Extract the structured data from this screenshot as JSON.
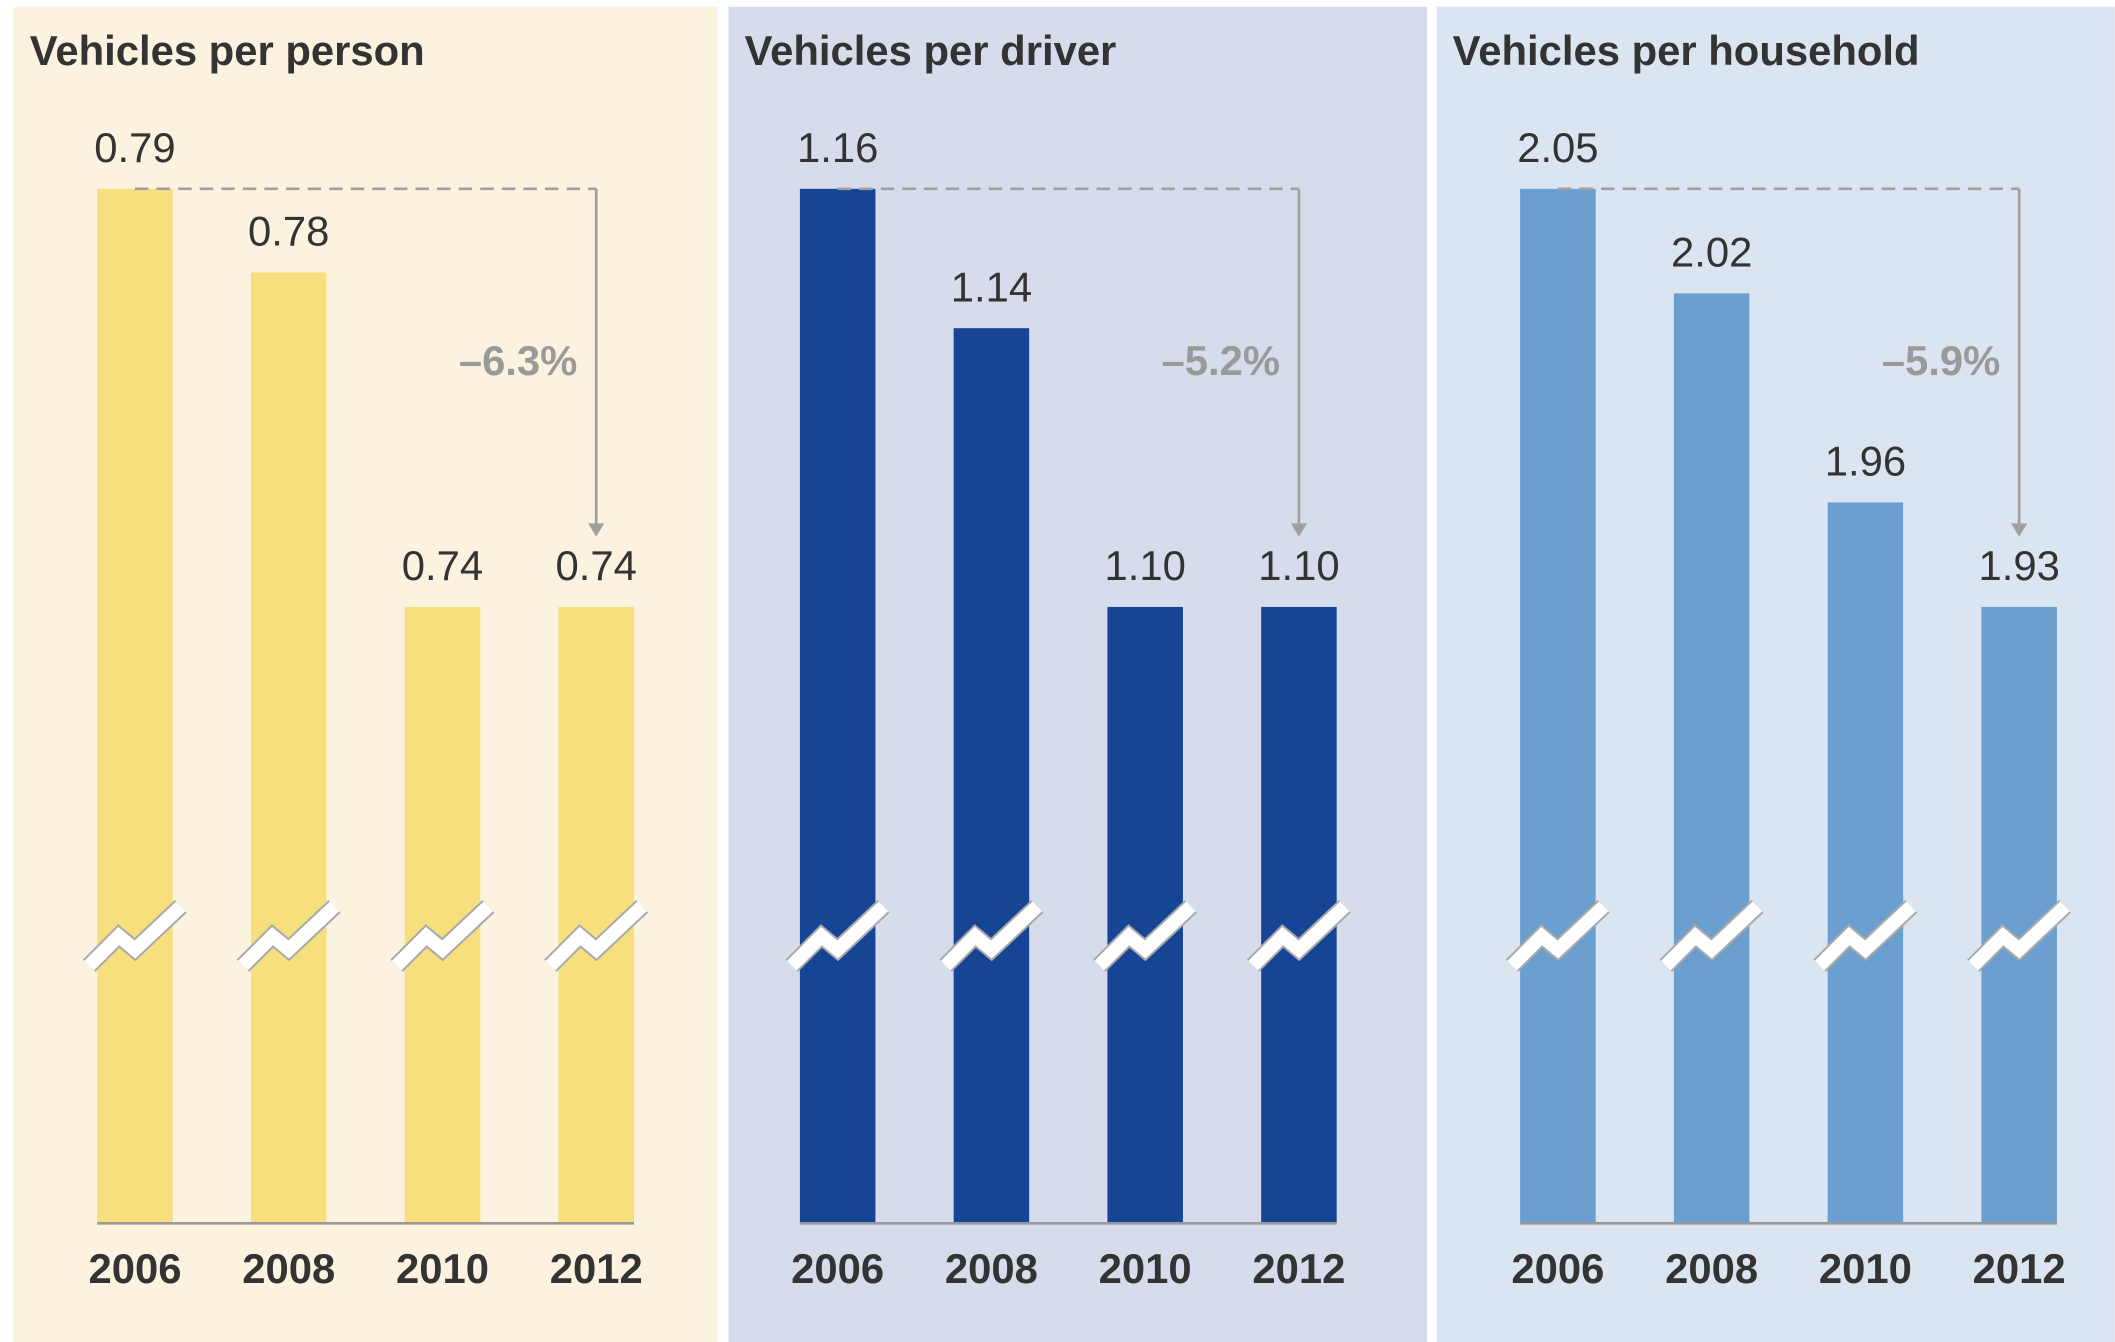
{
  "chart_data": [
    {
      "type": "bar",
      "title": "Vehicles per person",
      "categories": [
        "2006",
        "2008",
        "2010",
        "2012"
      ],
      "values": [
        0.79,
        0.78,
        0.74,
        0.74
      ],
      "value_labels": [
        "0.79",
        "0.78",
        "0.74",
        "0.74"
      ],
      "color": "#f7df7e",
      "background": "#fbf3df",
      "annotation": "–6.3%"
    },
    {
      "type": "bar",
      "title": "Vehicles per driver",
      "categories": [
        "2006",
        "2008",
        "2010",
        "2012"
      ],
      "values": [
        1.16,
        1.14,
        1.1,
        1.1
      ],
      "value_labels": [
        "1.16",
        "1.14",
        "1.10",
        "1.10"
      ],
      "color": "#164595",
      "background": "#d7dcec",
      "annotation": "–5.2%"
    },
    {
      "type": "bar",
      "title": "Vehicles per household",
      "categories": [
        "2006",
        "2008",
        "2010",
        "2012"
      ],
      "values": [
        2.05,
        2.02,
        1.96,
        1.93
      ],
      "value_labels": [
        "2.05",
        "2.02",
        "1.96",
        "1.93"
      ],
      "color": "#6a9fd0",
      "background": "#dbe5f1",
      "annotation": "–5.9%"
    }
  ]
}
